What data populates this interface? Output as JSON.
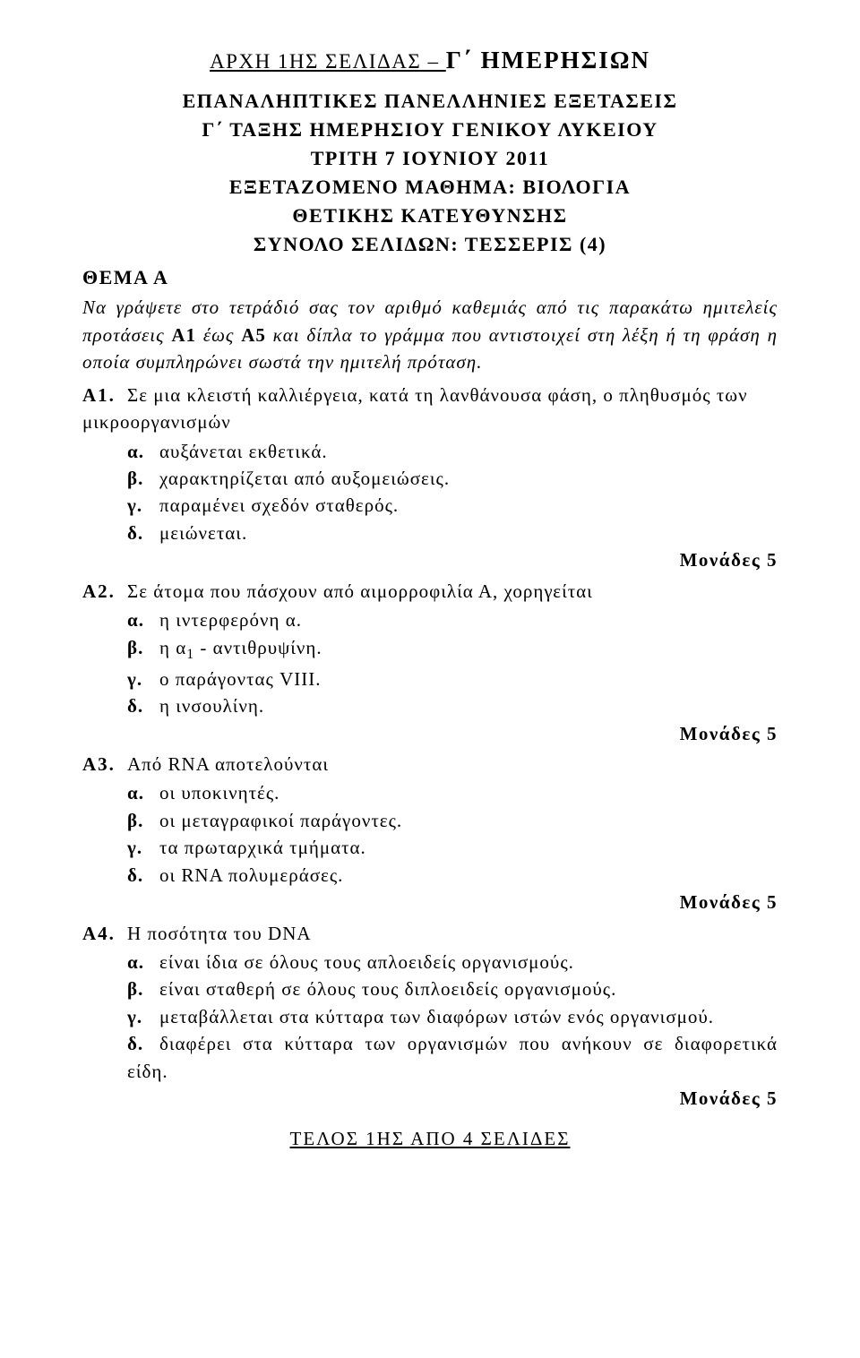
{
  "top": {
    "prefix": "ΑΡΧΗ 1ΗΣ ΣΕΛΙΔΑΣ – ",
    "suffix": "Γ΄ ΗΜΕΡΗΣΙΩΝ"
  },
  "header": {
    "l1": "ΕΠΑΝΑΛΗΠΤΙΚΕΣ ΠΑΝΕΛΛΗΝΙΕΣ ΕΞΕΤΑΣΕΙΣ",
    "l2": "Γ΄ ΤΑΞΗΣ ΗΜΕΡΗΣΙΟΥ ΓΕΝΙΚΟΥ ΛΥΚΕΙΟΥ",
    "l3": "ΤΡΙΤΗ 7 ΙΟΥΝΙΟΥ 2011",
    "l4": "ΕΞΕΤΑΖΟΜΕΝΟ ΜΑΘΗΜΑ: ΒΙΟΛΟΓΙΑ",
    "l5": "ΘΕΤΙΚΗΣ ΚΑΤΕΥΘΥΝΣΗΣ",
    "l6": "ΣΥΝΟΛΟ ΣΕΛΙΔΩΝ: ΤΕΣΣΕΡΙΣ (4)"
  },
  "theme": "ΘΕΜΑ Α",
  "intro": {
    "part1": "Να γράψετε στο τετράδιό σας τον αριθμό καθεμιάς από τις παρακάτω ημιτελείς προτάσεις ",
    "bold1": "Α1",
    "part2": " έως ",
    "bold2": "Α5",
    "part3": " και δίπλα το γράμμα που αντιστοιχεί στη λέξη ή τη φράση η οποία συμπληρώνει σωστά την ημιτελή πρόταση."
  },
  "q1": {
    "num": "Α1.",
    "text": "Σε μια κλειστή καλλιέργεια, κατά τη λανθάνουσα φάση, ο πληθυσμός των μικροοργανισμών",
    "a": "αυξάνεται εκθετικά.",
    "b": "χαρακτηρίζεται από αυξομειώσεις.",
    "c": "παραμένει σχεδόν σταθερός.",
    "d": "μειώνεται.",
    "points": "Μονάδες 5"
  },
  "q2": {
    "num": "Α2.",
    "text": "Σε άτομα που πάσχουν από αιμορροφιλία Α, χορηγείται",
    "a": "η ιντερφερόνη α.",
    "b_pre": "η α",
    "b_sub": "1",
    "b_post": " - αντιθρυψίνη.",
    "c": "ο παράγοντας VIII.",
    "d": "η ινσουλίνη.",
    "points": "Μονάδες 5"
  },
  "q3": {
    "num": "Α3.",
    "text": "Από RNA αποτελούνται",
    "a": "οι υποκινητές.",
    "b": "οι μεταγραφικοί παράγοντες.",
    "c": "τα πρωταρχικά τμήματα.",
    "d": "οι RNA πολυμεράσες.",
    "points": "Μονάδες 5"
  },
  "q4": {
    "num": "Α4.",
    "text": "Η ποσότητα του DNA",
    "a": "είναι ίδια σε όλους τους απλοειδείς οργανισμούς.",
    "b": "είναι σταθερή σε όλους τους διπλοειδείς οργανισμούς.",
    "c": "μεταβάλλεται στα κύτταρα των διαφόρων ιστών ενός οργανισμού.",
    "d": "διαφέρει στα κύτταρα των οργανισμών που ανήκουν σε διαφορετικά είδη.",
    "points": "Μονάδες 5"
  },
  "labels": {
    "a": "α.",
    "b": "β.",
    "c": "γ.",
    "d": "δ."
  },
  "footer": "ΤΕΛΟΣ 1ΗΣ ΑΠΟ 4 ΣΕΛΙΔΕΣ"
}
